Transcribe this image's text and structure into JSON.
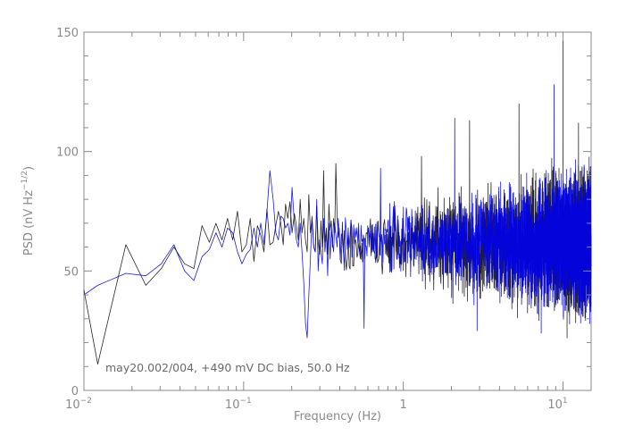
{
  "chart_data": {
    "type": "line",
    "xlabel": "Frequency (Hz)",
    "ylabel": "PSD (nV Hz",
    "ylabel_exp": "−1/2",
    "ylabel_suffix": ")",
    "xscale": "log",
    "xlim": [
      0.01,
      15
    ],
    "ylim": [
      0,
      150
    ],
    "y_ticks": [
      0,
      50,
      100,
      150
    ],
    "x_ticks": [
      {
        "value": 0.01,
        "base": "10",
        "exp": "−2"
      },
      {
        "value": 0.1,
        "base": "10",
        "exp": "−1"
      },
      {
        "value": 1,
        "base": "1",
        "exp": ""
      },
      {
        "value": 10,
        "base": "10",
        "exp": "1"
      }
    ],
    "annotation": "may20.002/004, +490 mV DC bias, 50.0 Hz",
    "grid": false,
    "series_colors": [
      "#000000",
      "#0000ee"
    ],
    "series": [
      {
        "x": [
          0.01,
          0.0122,
          0.0183,
          0.0244,
          0.0305,
          0.0366,
          0.0427,
          0.0488,
          0.0549,
          0.061,
          0.0671,
          0.0732,
          0.0793,
          0.0854,
          0.0915,
          0.0976,
          0.104,
          0.11,
          0.116,
          0.122,
          0.128,
          0.134,
          0.14,
          0.146,
          0.153,
          0.159,
          0.165,
          0.171,
          0.177,
          0.183,
          0.189,
          0.195,
          0.201,
          0.208,
          0.214,
          0.22,
          0.226,
          0.232,
          0.238,
          0.244,
          0.25,
          0.256,
          0.262,
          0.268,
          0.275,
          0.281,
          0.287,
          0.293,
          0.299,
          0.305,
          0.311,
          0.317,
          0.323,
          0.33,
          0.336,
          0.342,
          0.348,
          0.354,
          0.36,
          0.366,
          0.372,
          0.378,
          0.385,
          0.391,
          0.397
        ],
        "y": [
          42,
          11,
          61,
          44,
          51,
          60,
          53,
          51,
          69,
          62,
          70,
          63,
          72,
          63,
          75,
          58,
          61,
          72,
          54,
          69,
          65,
          58,
          76,
          61,
          62,
          69,
          75,
          70,
          61,
          78,
          72,
          79,
          66,
          74,
          69,
          63,
          80,
          66,
          72,
          63,
          58,
          82,
          66,
          72,
          60,
          58,
          77,
          62,
          57,
          71,
          60,
          92,
          62,
          68,
          57,
          78,
          67,
          71,
          60,
          72,
          66,
          95,
          73,
          64,
          68
        ]
      },
      {
        "x": [
          0.01,
          0.0122,
          0.0183,
          0.0244,
          0.0305,
          0.0366,
          0.0427,
          0.0488,
          0.0549,
          0.061,
          0.0671,
          0.0732,
          0.0793,
          0.0854,
          0.0915,
          0.0976,
          0.104,
          0.11,
          0.116,
          0.122,
          0.128,
          0.134,
          0.14,
          0.146,
          0.153,
          0.159,
          0.165,
          0.171,
          0.177,
          0.183,
          0.189,
          0.195,
          0.201,
          0.208,
          0.214,
          0.22,
          0.226,
          0.232,
          0.238,
          0.244,
          0.25,
          0.256,
          0.262,
          0.268,
          0.275,
          0.281,
          0.287,
          0.293,
          0.299,
          0.305,
          0.311,
          0.317,
          0.323,
          0.33,
          0.336,
          0.342,
          0.348,
          0.354,
          0.36,
          0.366,
          0.372,
          0.378,
          0.385,
          0.391,
          0.397
        ],
        "y": [
          40,
          44,
          49,
          48,
          53,
          61,
          50,
          46,
          56,
          59,
          66,
          60,
          68,
          66,
          58,
          53,
          57,
          59,
          68,
          60,
          70,
          61,
          75,
          92,
          80,
          66,
          63,
          73,
          72,
          68,
          70,
          65,
          85,
          70,
          63,
          60,
          70,
          58,
          45,
          28,
          22,
          40,
          55,
          73,
          60,
          58,
          80,
          50,
          63,
          58,
          53,
          72,
          58,
          66,
          48,
          70,
          55,
          67,
          62,
          58,
          70,
          65,
          60,
          72,
          66
        ]
      }
    ],
    "noise_band": {
      "f_start": 0.4,
      "f_end": 15,
      "mean": 62,
      "spread_start": 12,
      "spread_end": 30,
      "peaks": [
        {
          "x": 10,
          "y": 150,
          "series": 0
        },
        {
          "x": 8.8,
          "y": 128,
          "series": 1
        },
        {
          "x": 0.72,
          "y": 93,
          "series": 1
        },
        {
          "x": 1.3,
          "y": 98,
          "series": 0
        },
        {
          "x": 2.1,
          "y": 114,
          "series": 1
        },
        {
          "x": 2.6,
          "y": 113,
          "series": 0
        },
        {
          "x": 5.3,
          "y": 120,
          "series": 0
        },
        {
          "x": 12.5,
          "y": 112,
          "series": 0
        },
        {
          "x": 7.3,
          "y": 24,
          "series": 1
        },
        {
          "x": 10.6,
          "y": 22,
          "series": 0
        },
        {
          "x": 2.9,
          "y": 25,
          "series": 1
        },
        {
          "x": 0.57,
          "y": 26,
          "series": 1
        }
      ]
    }
  }
}
